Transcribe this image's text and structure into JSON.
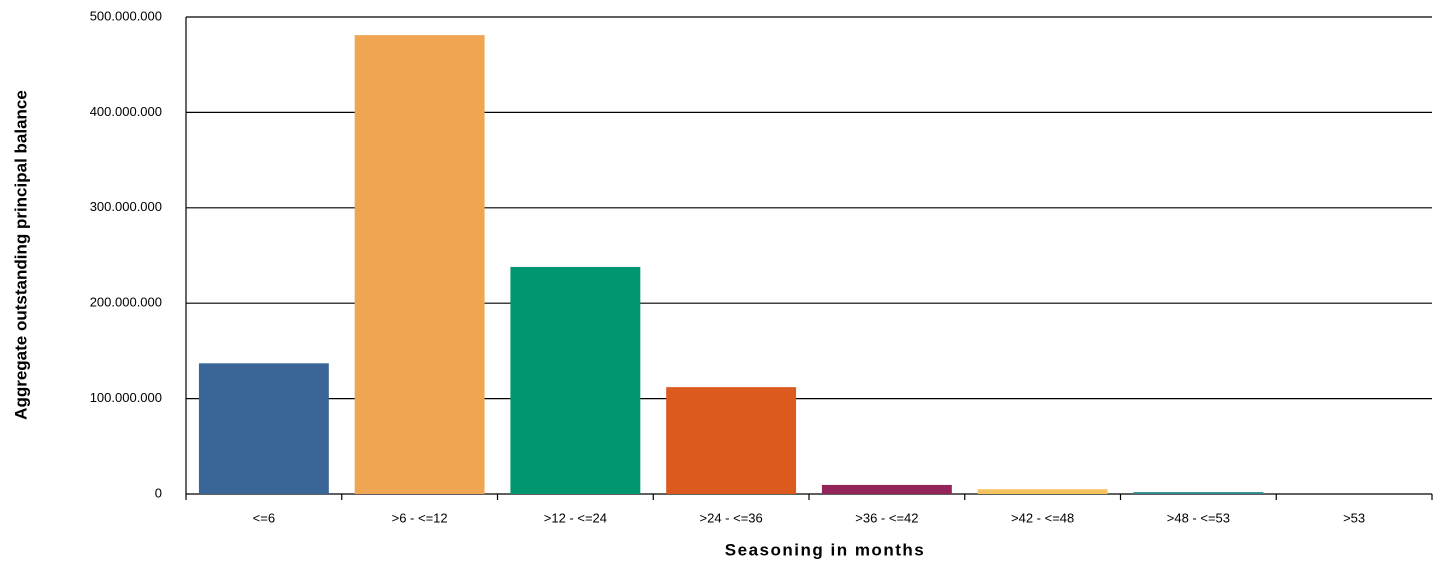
{
  "chart_data": {
    "type": "bar",
    "x_label": "Seasoning in months",
    "y_label": "Aggregate outstanding principal balance",
    "categories": [
      "<=6",
      ">6 - <=12",
      ">12 - <=24",
      ">24 - <=36",
      ">36 - <=42",
      ">42 - <=48",
      ">48 - <=53",
      ">53"
    ],
    "values": [
      137000000,
      481000000,
      238000000,
      112000000,
      9500000,
      5000000,
      2000000,
      0
    ],
    "colors": [
      "#3a6597",
      "#f0a553",
      "#009670",
      "#dc5a1e",
      "#93245a",
      "#f7c35f",
      "#2a8a8f",
      "#6a6a6a"
    ],
    "ylim": [
      0,
      500000000
    ],
    "yticks": [
      0,
      {
        "value": 100000000,
        "label": "100.000.000"
      },
      {
        "value": 200000000,
        "label": "200.000.000"
      },
      {
        "value": 300000000,
        "label": "300.000.000"
      },
      {
        "value": 400000000,
        "label": "400.000.000"
      },
      {
        "value": 500000000,
        "label": "500.000.000"
      }
    ],
    "grid": true
  }
}
